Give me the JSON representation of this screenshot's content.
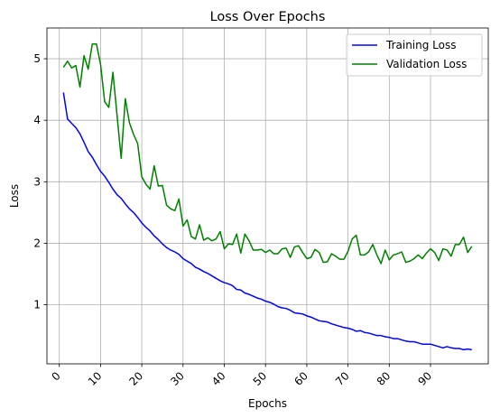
{
  "chart_data": {
    "type": "line",
    "title": "Loss Over Epochs",
    "xlabel": "Epochs",
    "ylabel": "Loss",
    "xlim": [
      -3,
      104
    ],
    "ylim": [
      0.04,
      5.5
    ],
    "x_ticks": [
      0,
      10,
      20,
      30,
      40,
      50,
      60,
      70,
      80,
      90
    ],
    "y_ticks": [
      1,
      2,
      3,
      4,
      5
    ],
    "grid": true,
    "legend_position": "top-right",
    "x": [
      1,
      2,
      3,
      4,
      5,
      6,
      7,
      8,
      9,
      10,
      11,
      12,
      13,
      14,
      15,
      16,
      17,
      18,
      19,
      20,
      21,
      22,
      23,
      24,
      25,
      26,
      27,
      28,
      29,
      30,
      31,
      32,
      33,
      34,
      35,
      36,
      37,
      38,
      39,
      40,
      41,
      42,
      43,
      44,
      45,
      46,
      47,
      48,
      49,
      50,
      51,
      52,
      53,
      54,
      55,
      56,
      57,
      58,
      59,
      60,
      61,
      62,
      63,
      64,
      65,
      66,
      67,
      68,
      69,
      70,
      71,
      72,
      73,
      74,
      75,
      76,
      77,
      78,
      79,
      80,
      81,
      82,
      83,
      84,
      85,
      86,
      87,
      88,
      89,
      90,
      91,
      92,
      93,
      94,
      95,
      96,
      97,
      98,
      99,
      100
    ],
    "series": [
      {
        "name": "Training Loss",
        "color": "#0000ff",
        "values": [
          4.45,
          4.02,
          3.95,
          3.88,
          3.78,
          3.64,
          3.49,
          3.4,
          3.28,
          3.17,
          3.09,
          2.99,
          2.88,
          2.79,
          2.73,
          2.64,
          2.56,
          2.5,
          2.42,
          2.33,
          2.26,
          2.2,
          2.12,
          2.06,
          1.99,
          1.93,
          1.89,
          1.86,
          1.82,
          1.75,
          1.71,
          1.67,
          1.61,
          1.58,
          1.54,
          1.51,
          1.47,
          1.43,
          1.39,
          1.36,
          1.34,
          1.31,
          1.25,
          1.24,
          1.19,
          1.17,
          1.14,
          1.11,
          1.09,
          1.06,
          1.04,
          1.01,
          0.97,
          0.95,
          0.94,
          0.91,
          0.87,
          0.86,
          0.85,
          0.82,
          0.8,
          0.77,
          0.74,
          0.73,
          0.72,
          0.69,
          0.67,
          0.65,
          0.63,
          0.62,
          0.6,
          0.57,
          0.58,
          0.55,
          0.54,
          0.52,
          0.5,
          0.5,
          0.48,
          0.47,
          0.45,
          0.45,
          0.43,
          0.41,
          0.4,
          0.4,
          0.38,
          0.36,
          0.36,
          0.36,
          0.34,
          0.32,
          0.3,
          0.32,
          0.3,
          0.29,
          0.29,
          0.27,
          0.28,
          0.27
        ]
      },
      {
        "name": "Validation Loss",
        "color": "#008000",
        "values": [
          4.86,
          4.96,
          4.85,
          4.89,
          4.54,
          5.05,
          4.83,
          5.24,
          5.24,
          4.91,
          4.3,
          4.21,
          4.78,
          4.08,
          3.38,
          4.35,
          3.96,
          3.77,
          3.62,
          3.08,
          2.96,
          2.88,
          3.26,
          2.93,
          2.94,
          2.62,
          2.56,
          2.53,
          2.72,
          2.28,
          2.38,
          2.11,
          2.07,
          2.3,
          2.05,
          2.09,
          2.04,
          2.07,
          2.19,
          1.91,
          1.99,
          1.98,
          2.15,
          1.84,
          2.15,
          2.04,
          1.89,
          1.89,
          1.9,
          1.85,
          1.89,
          1.83,
          1.83,
          1.91,
          1.92,
          1.77,
          1.94,
          1.96,
          1.85,
          1.75,
          1.77,
          1.9,
          1.85,
          1.69,
          1.7,
          1.83,
          1.79,
          1.74,
          1.74,
          1.87,
          2.07,
          2.13,
          1.81,
          1.81,
          1.86,
          1.98,
          1.81,
          1.67,
          1.89,
          1.73,
          1.81,
          1.83,
          1.86,
          1.69,
          1.71,
          1.75,
          1.81,
          1.75,
          1.84,
          1.91,
          1.85,
          1.72,
          1.91,
          1.89,
          1.79,
          1.98,
          1.98,
          2.1,
          1.85,
          1.95
        ]
      }
    ]
  }
}
